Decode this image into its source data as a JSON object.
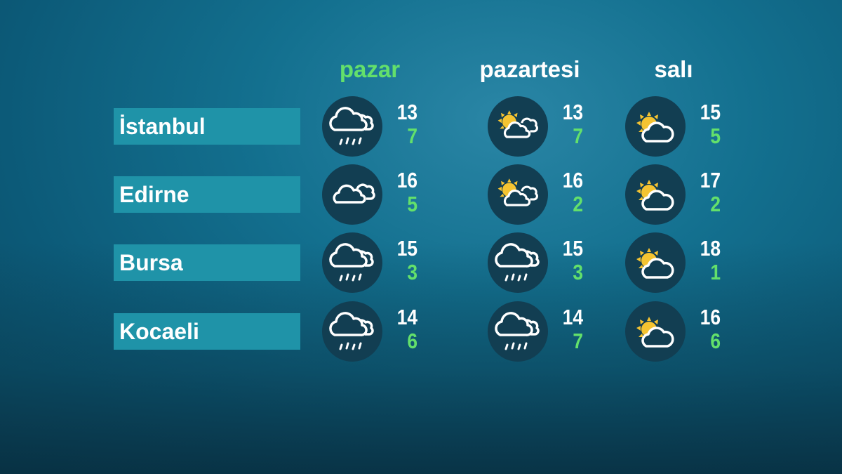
{
  "colors": {
    "highlight": "#63e06b",
    "high_temp": "#ffffff",
    "low_temp": "#63e06b",
    "sun": "#f5c431",
    "label_bg": "#1f93a8",
    "icon_bg": "#123e52"
  },
  "days": [
    "pazar",
    "pazartesi",
    "salı"
  ],
  "highlighted_day": 0,
  "rows": [
    {
      "city": "İstanbul",
      "forecast": [
        {
          "icon": "rain-icon",
          "high": "13",
          "low": "7"
        },
        {
          "icon": "partly-cloudy-icon",
          "high": "13",
          "low": "7"
        },
        {
          "icon": "sun-cloud-icon",
          "high": "15",
          "low": "5"
        }
      ]
    },
    {
      "city": "Edirne",
      "forecast": [
        {
          "icon": "cloudy-icon",
          "high": "16",
          "low": "5"
        },
        {
          "icon": "partly-cloudy-icon",
          "high": "16",
          "low": "2"
        },
        {
          "icon": "sun-cloud-icon",
          "high": "17",
          "low": "2"
        }
      ]
    },
    {
      "city": "Bursa",
      "forecast": [
        {
          "icon": "rain-icon",
          "high": "15",
          "low": "3"
        },
        {
          "icon": "rain-icon",
          "high": "15",
          "low": "3"
        },
        {
          "icon": "sun-cloud-icon",
          "high": "18",
          "low": "1"
        }
      ]
    },
    {
      "city": "Kocaeli",
      "forecast": [
        {
          "icon": "rain-icon",
          "high": "14",
          "low": "6"
        },
        {
          "icon": "rain-icon",
          "high": "14",
          "low": "7"
        },
        {
          "icon": "sun-cloud-icon",
          "high": "16",
          "low": "6"
        }
      ]
    }
  ]
}
